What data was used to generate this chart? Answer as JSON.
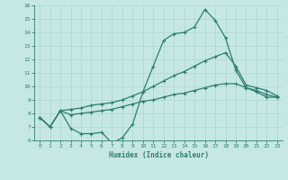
{
  "xlabel": "Humidex (Indice chaleur)",
  "ylabel": "",
  "xlim": [
    -0.5,
    23.5
  ],
  "ylim": [
    6,
    16
  ],
  "yticks": [
    6,
    7,
    8,
    9,
    10,
    11,
    12,
    13,
    14,
    15,
    16
  ],
  "xticks": [
    0,
    1,
    2,
    3,
    4,
    5,
    6,
    7,
    8,
    9,
    10,
    11,
    12,
    13,
    14,
    15,
    16,
    17,
    18,
    19,
    20,
    21,
    22,
    23
  ],
  "bg_color": "#c5e8e5",
  "line_color": "#2e7d6e",
  "grid_color": "#b0d5d0",
  "hours": [
    0,
    1,
    2,
    3,
    4,
    5,
    6,
    7,
    8,
    9,
    10,
    11,
    12,
    13,
    14,
    15,
    16,
    17,
    18,
    19,
    20,
    21,
    22,
    23
  ],
  "curve_max": [
    7.7,
    7.0,
    8.2,
    6.9,
    6.5,
    6.5,
    6.6,
    5.8,
    6.2,
    7.2,
    9.6,
    11.5,
    13.4,
    13.9,
    14.0,
    14.4,
    15.7,
    14.9,
    13.6,
    11.2,
    9.9,
    9.6,
    9.2,
    9.2
  ],
  "curve_upper": [
    7.7,
    7.0,
    8.2,
    8.3,
    8.4,
    8.6,
    8.7,
    8.8,
    9.0,
    9.3,
    9.6,
    10.0,
    10.4,
    10.8,
    11.1,
    11.5,
    11.9,
    12.2,
    12.5,
    11.5,
    10.1,
    9.9,
    9.7,
    9.3
  ],
  "curve_lower": [
    7.7,
    7.0,
    8.2,
    7.9,
    8.0,
    8.1,
    8.2,
    8.3,
    8.5,
    8.7,
    8.9,
    9.0,
    9.2,
    9.4,
    9.5,
    9.7,
    9.9,
    10.1,
    10.2,
    10.2,
    9.9,
    9.7,
    9.4,
    9.2
  ]
}
